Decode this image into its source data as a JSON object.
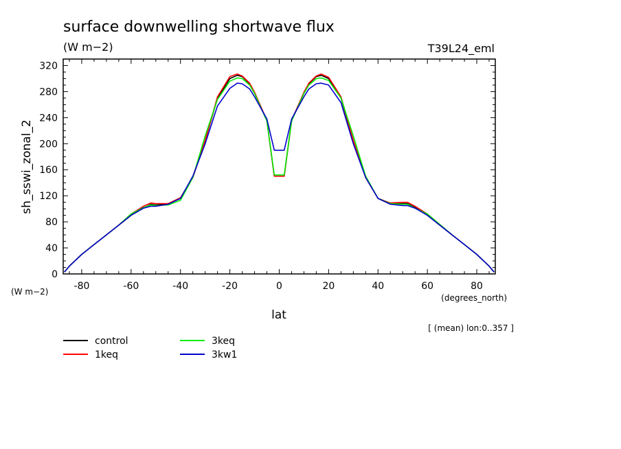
{
  "chart_data": {
    "type": "line",
    "title": "surface downwelling shortwave flux",
    "subtitle": "(W m−2)",
    "experiment_label": "T39L24_eml",
    "xlabel": "lat",
    "x_units": "(degrees_north)",
    "ylabel": "sh_sswi_zonal_2",
    "y_units": "(W m−2)",
    "note": "[ (mean) lon:0..357 ]",
    "xlim": [
      -87.5,
      87.5
    ],
    "ylim": [
      0,
      330
    ],
    "x_ticks": [
      -80,
      -60,
      -40,
      -20,
      0,
      20,
      40,
      60,
      80
    ],
    "x_tick_labels": [
      "-80",
      "-60",
      "-40",
      "-20",
      "0",
      "20",
      "40",
      "60",
      "80"
    ],
    "y_ticks": [
      0,
      40,
      80,
      120,
      160,
      200,
      240,
      280,
      320
    ],
    "y_tick_labels": [
      "0",
      "40",
      "80",
      "120",
      "160",
      "200",
      "240",
      "280",
      "320"
    ],
    "legend_placement": "bottom-left",
    "x": [
      -87,
      -85,
      -80,
      -75,
      -70,
      -65,
      -60,
      -55,
      -52,
      -50,
      -45,
      -40,
      -35,
      -30,
      -25,
      -20,
      -17,
      -15,
      -12,
      -10,
      -5,
      -2,
      0,
      2,
      5,
      10,
      12,
      15,
      17,
      20,
      25,
      30,
      35,
      40,
      45,
      50,
      52,
      55,
      60,
      65,
      70,
      75,
      80,
      85,
      87
    ],
    "series": [
      {
        "name": "control",
        "color": "#000000",
        "values": [
          3,
          12,
          30,
          45,
          60,
          75,
          90,
          101,
          107,
          106,
          108,
          116,
          148,
          205,
          270,
          300,
          305,
          303,
          292,
          278,
          235,
          150,
          150,
          150,
          235,
          278,
          292,
          303,
          305,
          300,
          270,
          205,
          148,
          116,
          108,
          108,
          108,
          102,
          90,
          75,
          60,
          45,
          30,
          12,
          3
        ]
      },
      {
        "name": "1keq",
        "color": "#ff0000",
        "values": [
          3,
          12,
          30,
          45,
          60,
          75,
          92,
          104,
          109,
          108,
          108,
          117,
          148,
          205,
          272,
          303,
          307,
          304,
          293,
          279,
          236,
          150,
          150,
          150,
          236,
          279,
          293,
          304,
          307,
          302,
          272,
          205,
          148,
          116,
          109,
          110,
          110,
          104,
          92,
          76,
          60,
          45,
          30,
          12,
          3
        ]
      },
      {
        "name": "3keq",
        "color": "#00ee00",
        "values": [
          3,
          12,
          30,
          45,
          60,
          75,
          92,
          102,
          106,
          105,
          106,
          113,
          148,
          212,
          268,
          296,
          301,
          300,
          290,
          277,
          235,
          152,
          152,
          152,
          235,
          277,
          290,
          300,
          301,
          297,
          270,
          212,
          150,
          116,
          108,
          107,
          107,
          101,
          92,
          76,
          60,
          45,
          30,
          12,
          3
        ]
      },
      {
        "name": "3kw1",
        "color": "#0000cc",
        "values": [
          3,
          12,
          30,
          45,
          60,
          75,
          90,
          101,
          104,
          104,
          107,
          116,
          150,
          200,
          258,
          285,
          293,
          292,
          284,
          272,
          238,
          190,
          190,
          190,
          238,
          272,
          284,
          292,
          293,
          290,
          263,
          200,
          148,
          116,
          107,
          105,
          105,
          101,
          90,
          75,
          60,
          45,
          30,
          12,
          3
        ]
      }
    ]
  }
}
